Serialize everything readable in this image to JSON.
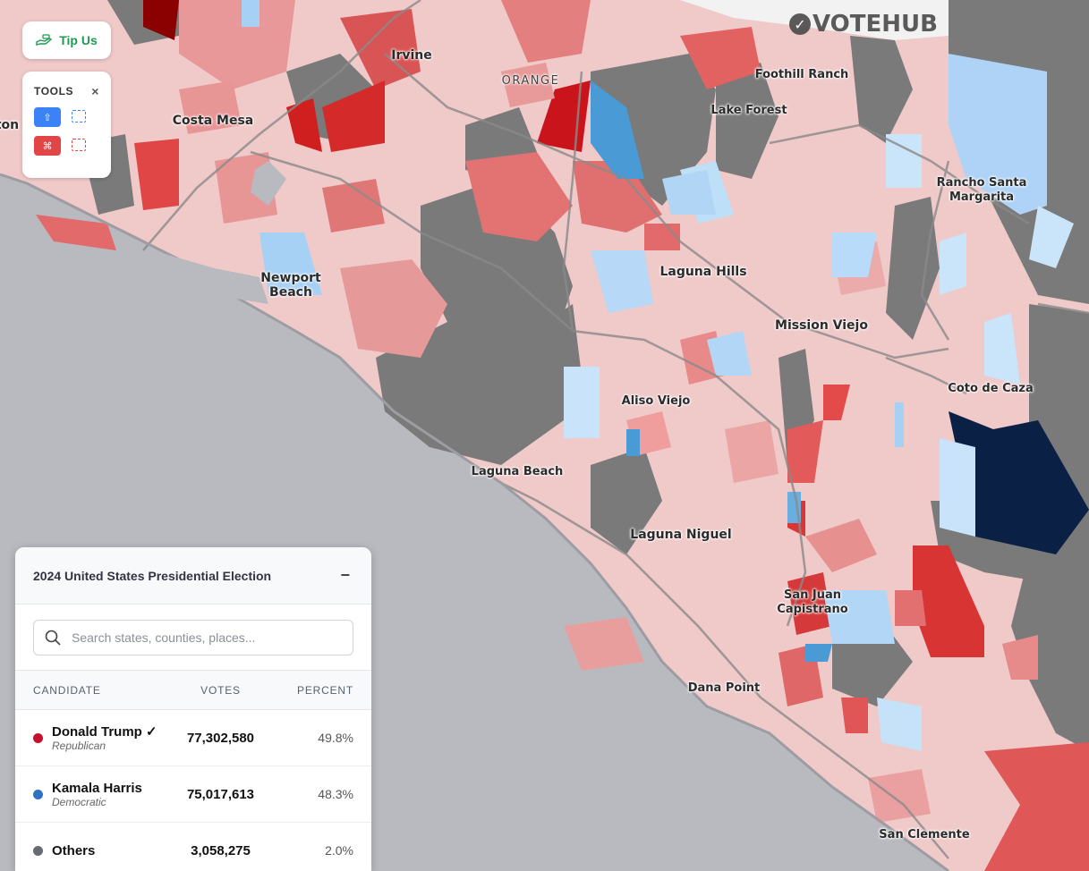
{
  "app": {
    "logo_text": "VOTEHUB",
    "logo_icon": "check-circle-icon"
  },
  "tip_button": {
    "label": "Tip Us",
    "icon": "hand-money-icon"
  },
  "tools": {
    "title": "TOOLS",
    "close": "×",
    "select_label": "⇧",
    "deselect_label": "⌘",
    "colors": {
      "select": "#3b82f6",
      "deselect": "#e24545"
    }
  },
  "places": [
    {
      "name": "Irvine"
    },
    {
      "name": "ORANGE"
    },
    {
      "name": "Costa Mesa"
    },
    {
      "name": "Foothill Ranch"
    },
    {
      "name": "Lake Forest"
    },
    {
      "name": "Rancho Santa\nMargarita"
    },
    {
      "name": "Laguna Hills"
    },
    {
      "name": "Newport\nBeach"
    },
    {
      "name": "Mission Viejo"
    },
    {
      "name": "Aliso Viejo"
    },
    {
      "name": "Coto de Caza"
    },
    {
      "name": "Laguna Beach"
    },
    {
      "name": "Laguna Niguel"
    },
    {
      "name": "San Juan\nCapistrano"
    },
    {
      "name": "Dana Point"
    },
    {
      "name": "San Clemente"
    },
    {
      "name": "ton"
    }
  ],
  "panel": {
    "title": "2024 United States Presidential Election",
    "minimize": "−",
    "search_placeholder": "Search states, counties, places...",
    "columns": {
      "candidate": "CANDIDATE",
      "votes": "VOTES",
      "percent": "PERCENT"
    },
    "rows": [
      {
        "name": "Donald Trump ✓",
        "party": "Republican",
        "votes": "77,302,580",
        "percent": "49.8%",
        "color": "#c8102e"
      },
      {
        "name": "Kamala Harris",
        "party": "Democratic",
        "votes": "75,017,613",
        "percent": "48.3%",
        "color": "#2f72c4"
      },
      {
        "name": "Others",
        "party": "",
        "votes": "3,058,275",
        "percent": "2.0%",
        "color": "#666b75"
      }
    ]
  }
}
